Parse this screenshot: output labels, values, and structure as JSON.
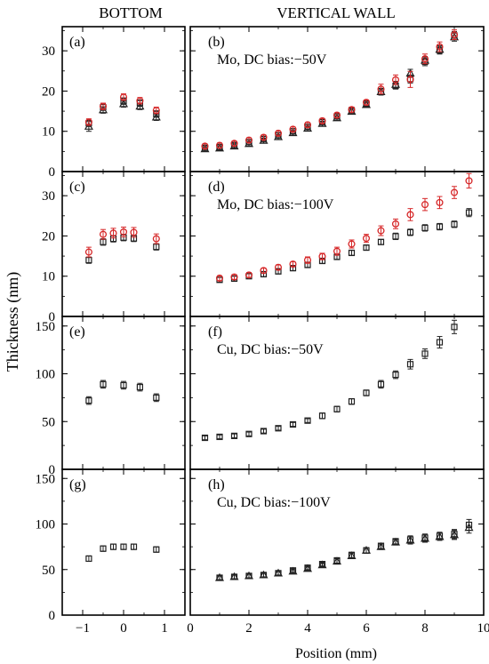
{
  "header": {
    "left": "BOTTOM",
    "right": "VERTICAL WALL"
  },
  "axes": {
    "ylabel": "Thickness (nm)",
    "xlabel": "Position (mm)"
  },
  "colors": {
    "red": "#d62728",
    "black": "#222222"
  },
  "chart_data": [
    {
      "type": "scatter",
      "id": "a",
      "panel_label": "(a)",
      "annotation": "",
      "xlim": [
        -1.5,
        1.5
      ],
      "ylim": [
        0,
        36
      ],
      "yticks": [
        0,
        10,
        20,
        30
      ],
      "xticks": [
        -1,
        0,
        1
      ],
      "series": [
        {
          "marker": "triangle",
          "color": "black",
          "x": [
            -0.85,
            -0.5,
            0,
            0.4,
            0.8
          ],
          "y": [
            11.2,
            15.3,
            16.8,
            16.2,
            13.5
          ],
          "err": [
            1.2,
            0.8,
            0.8,
            0.8,
            0.8
          ]
        },
        {
          "marker": "square",
          "color": "black",
          "x": [
            -0.85,
            -0.5,
            0,
            0.4,
            0.8
          ],
          "y": [
            12.0,
            16.0,
            17.5,
            17.0,
            14.3
          ],
          "err": [
            0.8,
            0.8,
            0.8,
            0.8,
            0.8
          ]
        },
        {
          "marker": "circle",
          "color": "red",
          "x": [
            -0.85,
            -0.5,
            0,
            0.4,
            0.8
          ],
          "y": [
            12.3,
            16.2,
            18.5,
            17.6,
            15.2
          ],
          "err": [
            0.8,
            0.8,
            0.8,
            0.8,
            0.8
          ]
        }
      ]
    },
    {
      "type": "scatter",
      "id": "b",
      "panel_label": "(b)",
      "annotation": "Mo, DC bias:−50V",
      "xlim": [
        0,
        10
      ],
      "ylim": [
        0,
        36
      ],
      "yticks": [
        0,
        10,
        20,
        30
      ],
      "xticks": [
        0,
        2,
        4,
        6,
        8,
        10
      ],
      "series": [
        {
          "marker": "triangle",
          "color": "black",
          "x": [
            0.5,
            1,
            1.5,
            2,
            2.5,
            3,
            3.5,
            4,
            4.5,
            5,
            5.5,
            6,
            6.5,
            7,
            7.5,
            8,
            8.5,
            9
          ],
          "y": [
            5.6,
            5.8,
            6.3,
            6.9,
            7.7,
            8.6,
            9.6,
            10.7,
            11.9,
            13.3,
            14.9,
            16.6,
            19.8,
            21.6,
            24.4,
            27.6,
            30.3,
            33.4
          ],
          "err": [
            0.6,
            0.6,
            0.6,
            0.6,
            0.6,
            0.6,
            0.6,
            0.6,
            0.6,
            0.6,
            0.6,
            0.6,
            0.8,
            0.8,
            1.0,
            1.0,
            1.0,
            1.0
          ]
        },
        {
          "marker": "square",
          "color": "black",
          "x": [
            0.5,
            1,
            1.5,
            2,
            2.5,
            3,
            3.5,
            4,
            4.5,
            5,
            5.5,
            6,
            6.5,
            7,
            7.5,
            8,
            8.5,
            9
          ],
          "y": [
            5.9,
            6.1,
            6.6,
            7.3,
            8.1,
            9.0,
            10.0,
            11.1,
            12.3,
            13.7,
            15.2,
            16.9,
            19.9,
            21.3,
            23.0,
            27.3,
            30.2,
            33.8
          ],
          "err": [
            0.6,
            0.6,
            0.6,
            0.6,
            0.6,
            0.6,
            0.6,
            0.6,
            0.6,
            0.6,
            0.6,
            0.6,
            0.8,
            0.8,
            1.0,
            1.0,
            1.0,
            1.0
          ]
        },
        {
          "marker": "circle",
          "color": "red",
          "x": [
            0.5,
            1,
            1.5,
            2,
            2.5,
            3,
            3.5,
            4,
            4.5,
            5,
            5.5,
            6,
            6.5,
            7,
            7.5,
            8,
            8.5,
            9
          ],
          "y": [
            6.3,
            6.5,
            7.0,
            7.8,
            8.5,
            9.5,
            10.5,
            11.6,
            12.6,
            14.0,
            15.4,
            17.2,
            20.5,
            22.8,
            22.9,
            28.0,
            31.0,
            34.0
          ],
          "err": [
            0.6,
            0.6,
            0.6,
            0.6,
            0.6,
            0.6,
            0.6,
            0.6,
            0.6,
            0.6,
            0.6,
            0.6,
            1.2,
            1.2,
            2.0,
            1.2,
            1.2,
            1.2
          ]
        }
      ]
    },
    {
      "type": "scatter",
      "id": "c",
      "panel_label": "(c)",
      "annotation": "",
      "xlim": [
        -1.5,
        1.5
      ],
      "ylim": [
        0,
        36
      ],
      "yticks": [
        0,
        10,
        20,
        30
      ],
      "xticks": [
        -1,
        0,
        1
      ],
      "series": [
        {
          "marker": "square",
          "color": "black",
          "x": [
            -0.85,
            -0.5,
            -0.25,
            0,
            0.25,
            0.8
          ],
          "y": [
            14.0,
            18.5,
            19.3,
            19.6,
            19.4,
            17.3
          ],
          "err": [
            0.8,
            0.8,
            0.8,
            0.8,
            0.8,
            0.8
          ]
        },
        {
          "marker": "circle",
          "color": "red",
          "x": [
            -0.85,
            -0.5,
            -0.25,
            0,
            0.25,
            0.8
          ],
          "y": [
            16.0,
            20.4,
            20.7,
            21.0,
            20.9,
            19.3
          ],
          "err": [
            1.2,
            1.2,
            1.2,
            1.2,
            1.2,
            1.2
          ]
        }
      ]
    },
    {
      "type": "scatter",
      "id": "d",
      "panel_label": "(d)",
      "annotation": "Mo, DC bias:−100V",
      "xlim": [
        0,
        10
      ],
      "ylim": [
        0,
        36
      ],
      "yticks": [
        0,
        10,
        20,
        30
      ],
      "xticks": [
        0,
        2,
        4,
        6,
        8,
        10
      ],
      "series": [
        {
          "marker": "square",
          "color": "black",
          "x": [
            1,
            1.5,
            2,
            2.5,
            3,
            3.5,
            4,
            4.5,
            5,
            5.5,
            6,
            6.5,
            7,
            7.5,
            8,
            8.5,
            9,
            9.5
          ],
          "y": [
            9.1,
            9.4,
            10.0,
            10.5,
            11.2,
            12.0,
            12.8,
            13.8,
            14.8,
            15.8,
            17.1,
            18.5,
            19.9,
            20.9,
            22.0,
            22.3,
            22.9,
            25.8
          ],
          "err": [
            0.6,
            0.6,
            0.6,
            0.6,
            0.6,
            0.6,
            0.6,
            0.6,
            0.6,
            0.6,
            0.6,
            0.6,
            0.8,
            0.8,
            0.8,
            0.8,
            0.8,
            1.0
          ]
        },
        {
          "marker": "circle",
          "color": "red",
          "x": [
            1,
            1.5,
            2,
            2.5,
            3,
            3.5,
            4,
            4.5,
            5,
            5.5,
            6,
            6.5,
            7,
            7.5,
            8,
            8.5,
            9,
            9.5
          ],
          "y": [
            9.5,
            9.8,
            10.3,
            11.4,
            12.2,
            13.0,
            14.0,
            14.9,
            16.2,
            18.0,
            19.4,
            21.3,
            23.0,
            25.3,
            27.8,
            28.3,
            30.8,
            33.7
          ],
          "err": [
            0.6,
            0.6,
            0.6,
            0.6,
            0.6,
            0.6,
            0.8,
            0.8,
            1.0,
            1.0,
            1.0,
            1.2,
            1.2,
            1.5,
            1.5,
            1.5,
            1.5,
            1.8
          ]
        }
      ]
    },
    {
      "type": "scatter",
      "id": "e",
      "panel_label": "(e)",
      "annotation": "",
      "xlim": [
        -1.5,
        1.5
      ],
      "ylim": [
        0,
        160
      ],
      "yticks": [
        0,
        50,
        100,
        150
      ],
      "xticks": [
        -1,
        0,
        1
      ],
      "series": [
        {
          "marker": "square",
          "color": "black",
          "x": [
            -0.85,
            -0.5,
            0,
            0.4,
            0.8
          ],
          "y": [
            72,
            89,
            88,
            86,
            75
          ],
          "err": [
            4,
            4,
            4,
            4,
            4
          ]
        }
      ]
    },
    {
      "type": "scatter",
      "id": "f",
      "panel_label": "(f)",
      "annotation": "Cu, DC bias:−50V",
      "xlim": [
        0,
        10
      ],
      "ylim": [
        0,
        160
      ],
      "yticks": [
        0,
        50,
        100,
        150
      ],
      "xticks": [
        0,
        2,
        4,
        6,
        8,
        10
      ],
      "series": [
        {
          "marker": "square",
          "color": "black",
          "x": [
            0.5,
            1,
            1.5,
            2,
            2.5,
            3,
            3.5,
            4,
            4.5,
            5,
            5.5,
            6,
            6.5,
            7,
            7.5,
            8,
            8.5,
            9
          ],
          "y": [
            33,
            34,
            35,
            37,
            40,
            43,
            47,
            51,
            56,
            63,
            71,
            80,
            89,
            99,
            110,
            121,
            133,
            149
          ],
          "err": [
            2,
            2,
            2,
            2,
            2,
            2,
            2,
            2,
            3,
            3,
            3,
            3,
            4,
            4,
            5,
            5,
            6,
            7
          ]
        }
      ]
    },
    {
      "type": "scatter",
      "id": "g",
      "panel_label": "(g)",
      "annotation": "",
      "xlim": [
        -1.5,
        1.5
      ],
      "ylim": [
        0,
        160
      ],
      "yticks": [
        0,
        50,
        100,
        150
      ],
      "xticks": [
        -1,
        0,
        1
      ],
      "series": [
        {
          "marker": "square",
          "color": "black",
          "x": [
            -0.85,
            -0.5,
            -0.25,
            0,
            0.25,
            0.8
          ],
          "y": [
            62,
            73,
            75,
            75,
            75,
            72
          ],
          "err": [
            3,
            3,
            3,
            3,
            3,
            3
          ]
        }
      ]
    },
    {
      "type": "scatter",
      "id": "h",
      "panel_label": "(h)",
      "annotation": "Cu, DC bias:−100V",
      "xlim": [
        0,
        10
      ],
      "ylim": [
        0,
        160
      ],
      "yticks": [
        0,
        50,
        100,
        150
      ],
      "xticks": [
        0,
        2,
        4,
        6,
        8,
        10
      ],
      "series": [
        {
          "marker": "triangle",
          "color": "black",
          "x": [
            1,
            1.5,
            2,
            2.5,
            3,
            3.5,
            4,
            4.5,
            5,
            5.5,
            6,
            6.5,
            7,
            7.5,
            8,
            8.5,
            9,
            9.5
          ],
          "y": [
            41,
            42,
            43,
            44,
            46,
            48,
            51,
            55,
            59,
            65,
            71,
            75,
            80,
            82,
            84,
            86,
            88,
            96
          ],
          "err": [
            2,
            2,
            2,
            2,
            2,
            2,
            2,
            2,
            3,
            3,
            3,
            3,
            3,
            4,
            4,
            4,
            5,
            6
          ]
        },
        {
          "marker": "square",
          "color": "black",
          "x": [
            1,
            1.5,
            2,
            2.5,
            3,
            3.5,
            4,
            4.5,
            5,
            5.5,
            6,
            6.5,
            7,
            7.5,
            8,
            8.5,
            9,
            9.5
          ],
          "y": [
            41,
            42,
            43,
            44,
            46,
            49,
            52,
            56,
            60,
            66,
            71,
            76,
            81,
            83,
            85,
            87,
            89,
            99
          ],
          "err": [
            2,
            2,
            2,
            2,
            2,
            2,
            2,
            2,
            3,
            3,
            3,
            3,
            3,
            4,
            4,
            4,
            5,
            6
          ]
        }
      ]
    }
  ]
}
